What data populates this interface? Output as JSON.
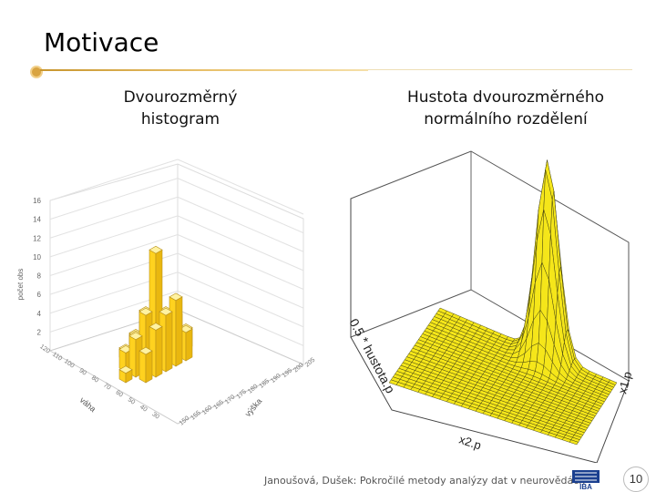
{
  "slide": {
    "title": "Motivace",
    "page_number": "10",
    "footer": "Janoušová, Dušek: Pokročilé metody analýzy dat v neurovědách"
  },
  "left_figure": {
    "caption_line1": "Dvourozměrný",
    "caption_line2": "histogram",
    "z_axis_label": "počet obs",
    "z_ticks": [
      "16",
      "14",
      "12",
      "10",
      "8",
      "6",
      "4",
      "2"
    ],
    "x_axis_label": "váha",
    "x_ticks": [
      "120",
      "110",
      "100",
      "90",
      "80",
      "70",
      "60",
      "50",
      "40",
      "30"
    ],
    "y_axis_label": "výška",
    "y_ticks": [
      "205",
      "200",
      "195",
      "190",
      "185",
      "180",
      "175",
      "170",
      "165",
      "160",
      "155",
      "150"
    ],
    "bar_color": "#ffd21f"
  },
  "right_figure": {
    "caption_line1": "Hustota dvourozměrného",
    "caption_line2": "normálního rozdělení",
    "z_axis_label": "0.5 * hustota.p",
    "x1_axis_label": "x1.p",
    "x2_axis_label": "x2.p",
    "surface_color": "#f5e61a"
  },
  "logo": {
    "label": "IBA"
  },
  "chart_data": [
    {
      "type": "bar3d",
      "title": "Dvourozměrný histogram",
      "xlabel": "váha",
      "ylabel": "výška",
      "zlabel": "počet obs",
      "zlim": [
        0,
        16
      ],
      "bars": [
        {
          "x": 3,
          "y": 4,
          "h": 12
        },
        {
          "x": 3,
          "y": 3,
          "h": 6
        },
        {
          "x": 4,
          "y": 3,
          "h": 7
        },
        {
          "x": 2,
          "y": 4,
          "h": 6
        },
        {
          "x": 4,
          "y": 4,
          "h": 5
        },
        {
          "x": 2,
          "y": 3,
          "h": 5
        },
        {
          "x": 5,
          "y": 4,
          "h": 4
        },
        {
          "x": 3,
          "y": 5,
          "h": 5
        },
        {
          "x": 1,
          "y": 4,
          "h": 4
        },
        {
          "x": 5,
          "y": 3,
          "h": 3
        },
        {
          "x": 4,
          "y": 5,
          "h": 4
        },
        {
          "x": 2,
          "y": 5,
          "h": 3
        },
        {
          "x": 1,
          "y": 3,
          "h": 3
        },
        {
          "x": 6,
          "y": 4,
          "h": 2
        },
        {
          "x": 3,
          "y": 6,
          "h": 2
        },
        {
          "x": 1,
          "y": 5,
          "h": 2
        },
        {
          "x": 5,
          "y": 5,
          "h": 2
        },
        {
          "x": 0,
          "y": 4,
          "h": 1
        },
        {
          "x": 2,
          "y": 6,
          "h": 1
        },
        {
          "x": 4,
          "y": 6,
          "h": 1
        }
      ]
    },
    {
      "type": "surface",
      "title": "Hustota dvourozměrného normálního rozdělení",
      "xlabel": "x2.p",
      "ylabel": "x1.p",
      "zlabel": "0.5 * hustota.p",
      "grid": 26,
      "peak": {
        "cx": 0.62,
        "cy": 0.5,
        "sx": 0.06,
        "sy": 0.06
      }
    }
  ]
}
